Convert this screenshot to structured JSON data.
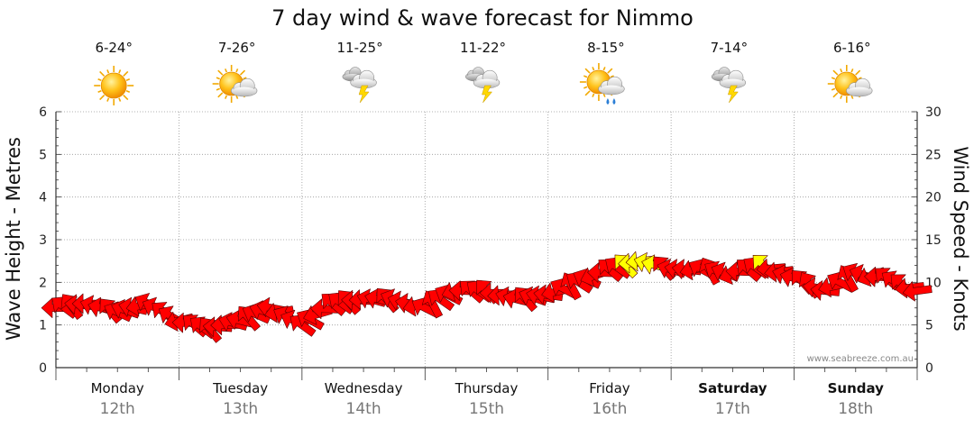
{
  "chart_data": {
    "type": "line",
    "title": "7 day wind & wave forecast for Nimmo",
    "y_left_label": "Wave Height - Metres",
    "y_right_label": "Wind Speed - Knots",
    "y_left_ticks": [
      "0",
      "1",
      "2",
      "3",
      "4",
      "5",
      "6"
    ],
    "y_right_ticks": [
      "0",
      "5",
      "10",
      "15",
      "20",
      "25",
      "30"
    ],
    "y_left_range": [
      0,
      6
    ],
    "y_right_range": [
      0,
      30
    ],
    "grid": true,
    "credit": "www.seabreeze.com.au",
    "days": [
      {
        "name": "Monday",
        "date": "12th",
        "temp": "6-24°",
        "icon": "sunny-icon",
        "bold": false
      },
      {
        "name": "Tuesday",
        "date": "13th",
        "temp": "7-26°",
        "icon": "partly-cloudy-icon",
        "bold": false
      },
      {
        "name": "Wednesday",
        "date": "14th",
        "temp": "11-25°",
        "icon": "thunderstorm-icon",
        "bold": false
      },
      {
        "name": "Thursday",
        "date": "15th",
        "temp": "11-22°",
        "icon": "thunderstorm-icon",
        "bold": false
      },
      {
        "name": "Friday",
        "date": "16th",
        "temp": "8-15°",
        "icon": "sun-shower-icon",
        "bold": false
      },
      {
        "name": "Saturday",
        "date": "17th",
        "temp": "7-14°",
        "icon": "thunderstorm-icon",
        "bold": true
      },
      {
        "name": "Sunday",
        "date": "18th",
        "temp": "6-16°",
        "icon": "partly-cloudy-icon",
        "bold": true
      }
    ],
    "series": [
      {
        "name": "Wind Speed",
        "unit": "knots",
        "x_hours": [
          0,
          6,
          12,
          18,
          24,
          30,
          36,
          42,
          48,
          54,
          60,
          66,
          72,
          78,
          84,
          90,
          96,
          102,
          108,
          114,
          120,
          126,
          132,
          138,
          144,
          150,
          156,
          162,
          168
        ],
        "values": [
          7,
          7.5,
          6.5,
          7.5,
          5.5,
          4.5,
          5.5,
          7,
          5,
          7.5,
          8,
          8,
          7,
          9,
          9,
          8,
          8.5,
          10,
          11.5,
          12.5,
          11.5,
          11.5,
          11,
          12,
          10.5,
          9,
          11,
          10.5,
          9
        ]
      }
    ],
    "wind_colors": {
      "below_threshold": "#ff0000",
      "above_threshold": "#ffff00"
    },
    "wind_threshold_knots": 12
  }
}
